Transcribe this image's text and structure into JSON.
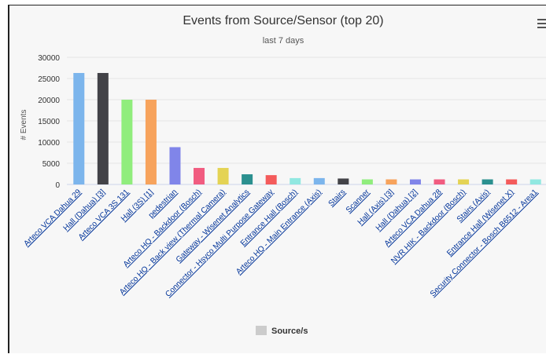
{
  "menu_icon": "hamburger-menu-icon",
  "chart_data": {
    "type": "bar",
    "title": "Events from Source/Sensor (top 20)",
    "subtitle": "last 7 days",
    "ylabel": "# Events",
    "xlabel": "",
    "ylim": [
      0,
      30000
    ],
    "yticks": [
      "0",
      "5000",
      "10000",
      "15000",
      "20000",
      "25000",
      "30000"
    ],
    "grid": true,
    "legend": {
      "placement": "bottom-center",
      "label": "Source/s",
      "color": "#cccccc"
    },
    "categories": [
      "Arteco VCA Dahua 29",
      "Hall (Dahua) [3]",
      "Arteco VCA 3S 131",
      "Hall (3S) [1]",
      "pedestrian",
      "Arteco HQ - Backdoor (Bosch)",
      "Arteco HQ - Back view (Thermal Camera)",
      "Gateway - Wisenet Analytics",
      "Connector - Hsyco Multi Purpose Gateway",
      "Entrance Hall (Bosch)",
      "Arteco HQ - Main Entrance (Axis)",
      "Stairs",
      "Scanner",
      "Hall (Axis) [3]",
      "Hall (Dahua) [2]",
      "Arteco VCA Dahua 28",
      "NVR HIK - Backdoor (Bosch)",
      "Stairs (Axis)",
      "Entrance Hall (Wisenet X)",
      "Security Connector - Bosch B6512 - Area1"
    ],
    "values": [
      26300,
      26300,
      20000,
      20000,
      8800,
      3900,
      3900,
      2400,
      2200,
      1500,
      1500,
      1400,
      1200,
      1200,
      1200,
      1200,
      1200,
      1200,
      1200,
      1200
    ],
    "colors": [
      "#7cb5ec",
      "#434348",
      "#90ed7d",
      "#f7a35c",
      "#8085e9",
      "#f15c80",
      "#e4d354",
      "#2b908f",
      "#f45b5b",
      "#91e8e1",
      "#7cb5ec",
      "#434348",
      "#90ed7d",
      "#f7a35c",
      "#8085e9",
      "#f15c80",
      "#e4d354",
      "#2b908f",
      "#f45b5b",
      "#91e8e1"
    ]
  }
}
